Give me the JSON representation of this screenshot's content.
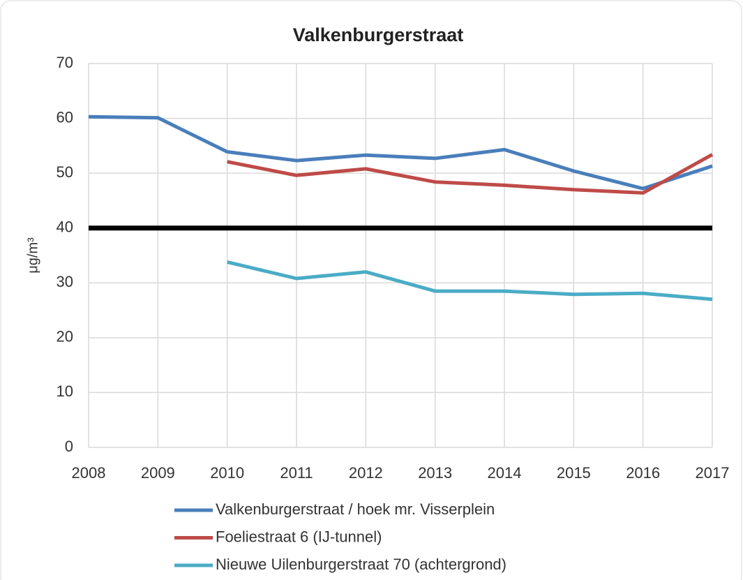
{
  "chart_data": {
    "type": "line",
    "title": "Valkenburgerstraat",
    "y_label": "μg/m³",
    "x": [
      2008,
      2009,
      2010,
      2011,
      2012,
      2013,
      2014,
      2015,
      2016,
      2017
    ],
    "xlim": [
      2008,
      2017
    ],
    "xticks": [
      2008,
      2009,
      2010,
      2011,
      2012,
      2013,
      2014,
      2015,
      2016,
      2017
    ],
    "ylim": [
      0,
      70
    ],
    "yticks": [
      0,
      10,
      20,
      30,
      40,
      50,
      60,
      70
    ],
    "grid": true,
    "legend": "bottom",
    "reference_line": {
      "value": 40,
      "color": "#000000"
    },
    "series": [
      {
        "name": "Valkenburgerstraat / hoek mr. Visserplein",
        "color": "#4a7ebb",
        "values": [
          60.3,
          60.1,
          53.9,
          52.3,
          53.3,
          52.7,
          54.3,
          50.4,
          47.2,
          51.3
        ]
      },
      {
        "name": "Foeliestraat 6 (IJ-tunnel)",
        "color": "#be4b48",
        "values": [
          null,
          null,
          52.1,
          49.6,
          50.8,
          48.4,
          47.8,
          47.0,
          46.4,
          53.4
        ]
      },
      {
        "name": "Nieuwe Uilenburgerstraat 70 (achtergrond)",
        "color": "#4bacc6",
        "values": [
          null,
          null,
          33.8,
          30.8,
          32.0,
          28.5,
          28.5,
          27.9,
          28.1,
          27.0
        ]
      }
    ]
  }
}
